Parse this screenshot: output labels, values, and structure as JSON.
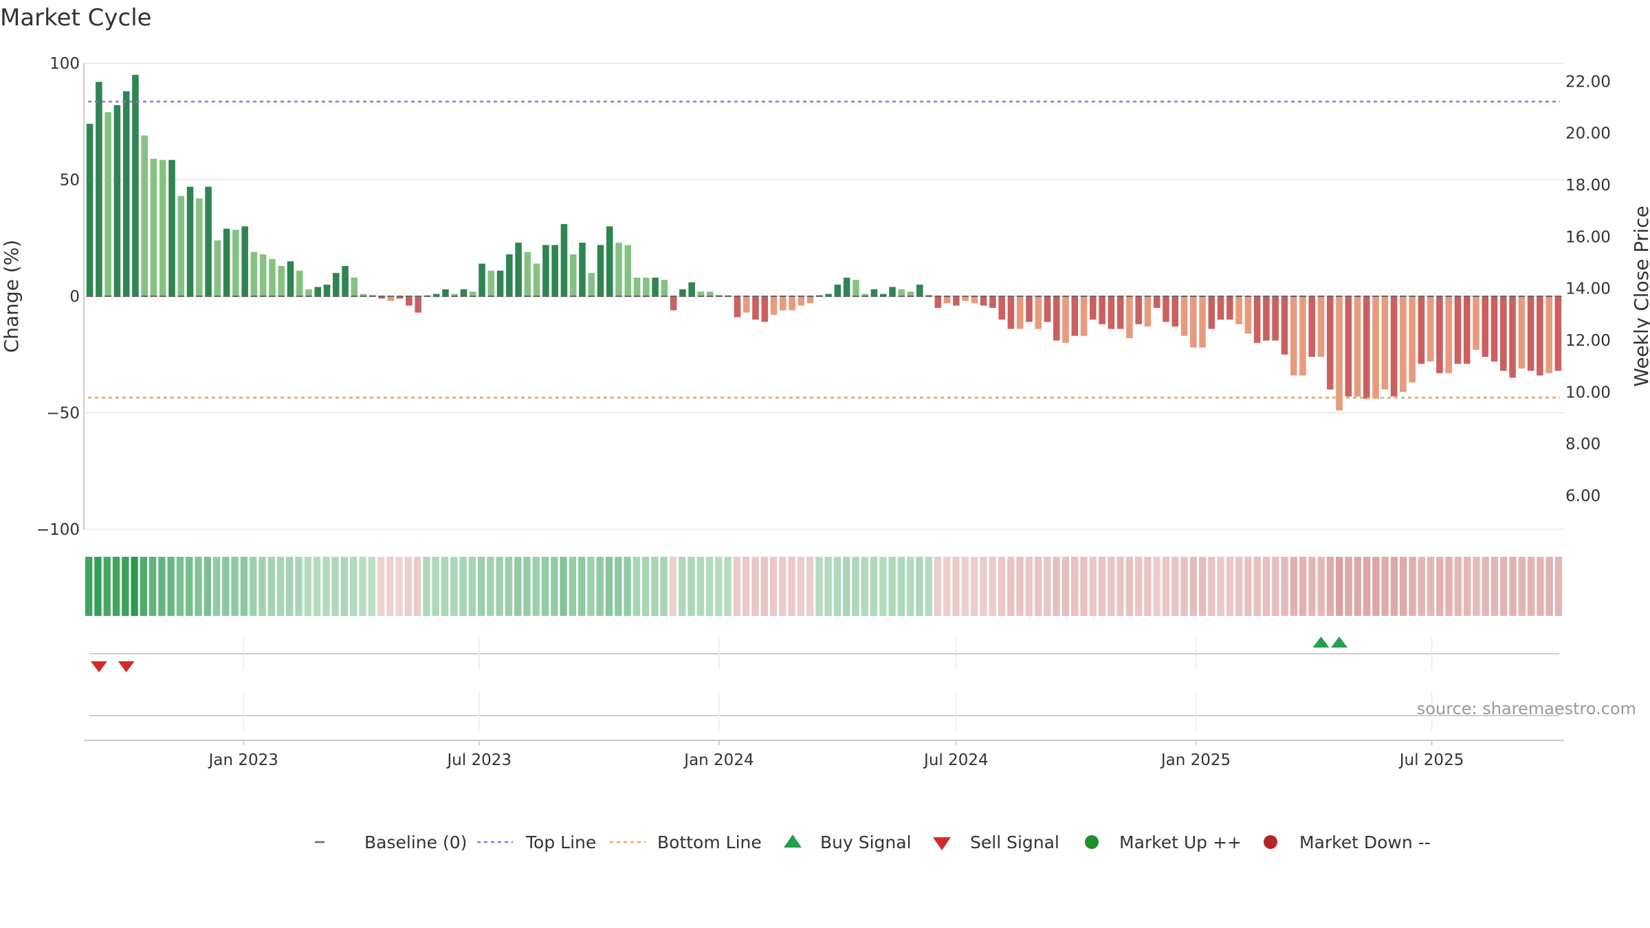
{
  "title": "Market Cycle",
  "source": "source: sharemaestro.com",
  "colors": {
    "up_strong": "#2e8552",
    "up_light": "#86c184",
    "down_strong": "#cc5f5f",
    "down_light": "#e89b7c",
    "top_line": "#9b6fdc",
    "bottom_line": "#f0a060",
    "buy": "#22a04b",
    "sell": "#d12a2a",
    "market_up": "#1f8f2a",
    "market_down": "#b52525",
    "grid": "#e6e6e6",
    "baseline": "#666666"
  },
  "chart_data": {
    "type": "bar",
    "title": "Market Cycle",
    "ylabel_left": "Change (%)",
    "ylabel_right": "Weekly Close Price",
    "ylim_left": [
      -100,
      100
    ],
    "yticks_left": [
      100,
      50,
      0,
      -50,
      -100
    ],
    "yticks_left_labels": [
      "100",
      "50",
      "0",
      "−50",
      "−100"
    ],
    "ylim_right": [
      4.7,
      22.7
    ],
    "yticks_right": [
      "22.00",
      "20.00",
      "18.00",
      "16.00",
      "14.00",
      "12.00",
      "10.00",
      "8.00",
      "6.00"
    ],
    "x_start": "2022-09-05",
    "x_interval_days": 7,
    "x_tick_labels": [
      "Jan 2023",
      "Jul 2023",
      "Jan 2024",
      "Jul 2024",
      "Jan 2025",
      "Jul 2025"
    ],
    "x_tick_dates": [
      "2023-01-01",
      "2023-07-01",
      "2024-01-01",
      "2024-07-01",
      "2025-01-01",
      "2025-07-01"
    ],
    "top_line": 83.5,
    "bottom_line": -43.5,
    "baseline": 0,
    "values": [
      74,
      92,
      79,
      82,
      88,
      95,
      69,
      59,
      58.5,
      58.5,
      43,
      47,
      42,
      47,
      24,
      29,
      28.5,
      30,
      19,
      18,
      16,
      13,
      15,
      11,
      3,
      4,
      5,
      10,
      13,
      8,
      1,
      0,
      -1,
      -2,
      -1,
      -4,
      -7,
      0,
      1,
      3,
      1,
      3,
      2,
      14,
      11,
      11,
      18,
      23,
      19,
      14,
      22,
      22,
      31,
      18,
      23,
      10,
      22,
      30,
      23,
      22,
      8,
      8,
      8,
      7,
      -6,
      3,
      6,
      2,
      2,
      0,
      0,
      -9,
      -7,
      -10,
      -11,
      -8,
      -6,
      -6,
      -4,
      -3,
      0,
      1,
      5,
      8,
      7,
      1,
      3,
      1,
      4,
      3,
      2,
      5,
      0,
      -5,
      -3,
      -4,
      -2,
      -3,
      -4,
      -5,
      -10,
      -14,
      -14,
      -11,
      -14,
      -11,
      -19,
      -20,
      -17,
      -17,
      -10,
      -12,
      -14,
      -14,
      -18,
      -12,
      -13,
      -5,
      -11,
      -13,
      -17,
      -22,
      -22,
      -14,
      -10,
      -10,
      -12,
      -16,
      -20,
      -19,
      -19,
      -25,
      -34,
      -34,
      -26,
      -26,
      -40,
      -49,
      -43,
      -43,
      -44,
      -44,
      -40,
      -43,
      -41,
      -37,
      -29,
      -28,
      -33,
      -33,
      -29,
      -29,
      -23,
      -26,
      -28,
      -32,
      -35,
      -31,
      -32,
      -34,
      -33,
      -32
    ],
    "strong_flags": [
      1,
      1,
      0,
      1,
      1,
      1,
      0,
      0,
      0,
      1,
      0,
      1,
      0,
      1,
      0,
      1,
      0,
      1,
      0,
      0,
      0,
      0,
      1,
      0,
      0,
      1,
      1,
      1,
      1,
      0,
      0,
      1,
      1,
      0,
      1,
      1,
      1,
      0,
      1,
      1,
      0,
      1,
      0,
      1,
      0,
      1,
      1,
      1,
      0,
      0,
      1,
      1,
      1,
      0,
      1,
      0,
      1,
      1,
      0,
      0,
      0,
      0,
      1,
      0,
      1,
      1,
      1,
      0,
      0,
      1,
      0,
      1,
      0,
      1,
      1,
      0,
      0,
      0,
      0,
      0,
      1,
      1,
      1,
      1,
      0,
      0,
      1,
      1,
      1,
      0,
      0,
      1,
      1,
      1,
      0,
      1,
      0,
      0,
      1,
      1,
      1,
      1,
      0,
      1,
      0,
      1,
      1,
      0,
      1,
      0,
      1,
      1,
      1,
      1,
      0,
      1,
      0,
      1,
      1,
      1,
      0,
      0,
      0,
      1,
      1,
      1,
      0,
      0,
      1,
      1,
      1,
      1,
      0,
      0,
      1,
      0,
      1,
      0,
      1,
      0,
      1,
      0,
      0,
      1,
      0,
      0,
      1,
      0,
      1,
      0,
      1,
      1,
      0,
      1,
      1,
      1,
      1,
      0,
      1,
      1,
      0,
      1,
      0
    ],
    "heat_strip": [
      0.9,
      0.95,
      0.85,
      0.88,
      0.92,
      1.0,
      0.8,
      0.7,
      0.68,
      0.66,
      0.55,
      0.58,
      0.52,
      0.55,
      0.42,
      0.45,
      0.44,
      0.45,
      0.35,
      0.33,
      0.32,
      0.3,
      0.31,
      0.28,
      0.22,
      0.22,
      0.23,
      0.26,
      0.28,
      0.24,
      0.2,
      0.18,
      -0.2,
      -0.22,
      -0.2,
      -0.24,
      -0.25,
      0.25,
      0.26,
      0.27,
      0.28,
      0.3,
      0.3,
      0.36,
      0.34,
      0.34,
      0.38,
      0.42,
      0.4,
      0.36,
      0.42,
      0.42,
      0.5,
      0.4,
      0.44,
      0.35,
      0.42,
      0.48,
      0.44,
      0.42,
      0.3,
      0.3,
      0.3,
      0.29,
      -0.22,
      0.25,
      0.27,
      0.24,
      0.24,
      0.22,
      0.22,
      -0.28,
      -0.27,
      -0.3,
      -0.31,
      -0.29,
      -0.27,
      -0.27,
      -0.25,
      -0.24,
      0.22,
      0.23,
      0.26,
      0.28,
      0.27,
      0.23,
      0.25,
      0.23,
      0.26,
      0.25,
      0.24,
      0.26,
      0.22,
      -0.25,
      -0.24,
      -0.25,
      -0.23,
      -0.24,
      -0.25,
      -0.26,
      -0.3,
      -0.33,
      -0.33,
      -0.31,
      -0.33,
      -0.31,
      -0.37,
      -0.38,
      -0.36,
      -0.36,
      -0.3,
      -0.32,
      -0.33,
      -0.33,
      -0.36,
      -0.32,
      -0.33,
      -0.26,
      -0.31,
      -0.33,
      -0.36,
      -0.4,
      -0.4,
      -0.33,
      -0.3,
      -0.3,
      -0.32,
      -0.35,
      -0.38,
      -0.37,
      -0.37,
      -0.42,
      -0.5,
      -0.5,
      -0.44,
      -0.44,
      -0.55,
      -0.65,
      -0.58,
      -0.58,
      -0.59,
      -0.59,
      -0.55,
      -0.58,
      -0.56,
      -0.52,
      -0.45,
      -0.44,
      -0.49,
      -0.49,
      -0.45,
      -0.45,
      -0.4,
      -0.43,
      -0.45,
      -0.48,
      -0.5,
      -0.47,
      -0.48,
      -0.49,
      -0.48,
      -0.47
    ],
    "buy_signals": [
      "2025-04-07",
      "2025-04-21"
    ],
    "sell_signals": [
      "2022-09-12",
      "2022-10-03"
    ],
    "legend": [
      {
        "label": "Baseline (0)",
        "marker": "dash"
      },
      {
        "label": "Top Line",
        "marker": "dotted-purple"
      },
      {
        "label": "Bottom Line",
        "marker": "dotted-orange"
      },
      {
        "label": "Buy Signal",
        "marker": "triangle-up"
      },
      {
        "label": "Sell Signal",
        "marker": "triangle-down"
      },
      {
        "label": "Market Up ++",
        "marker": "circle-green"
      },
      {
        "label": "Market Down --",
        "marker": "circle-red"
      }
    ]
  }
}
